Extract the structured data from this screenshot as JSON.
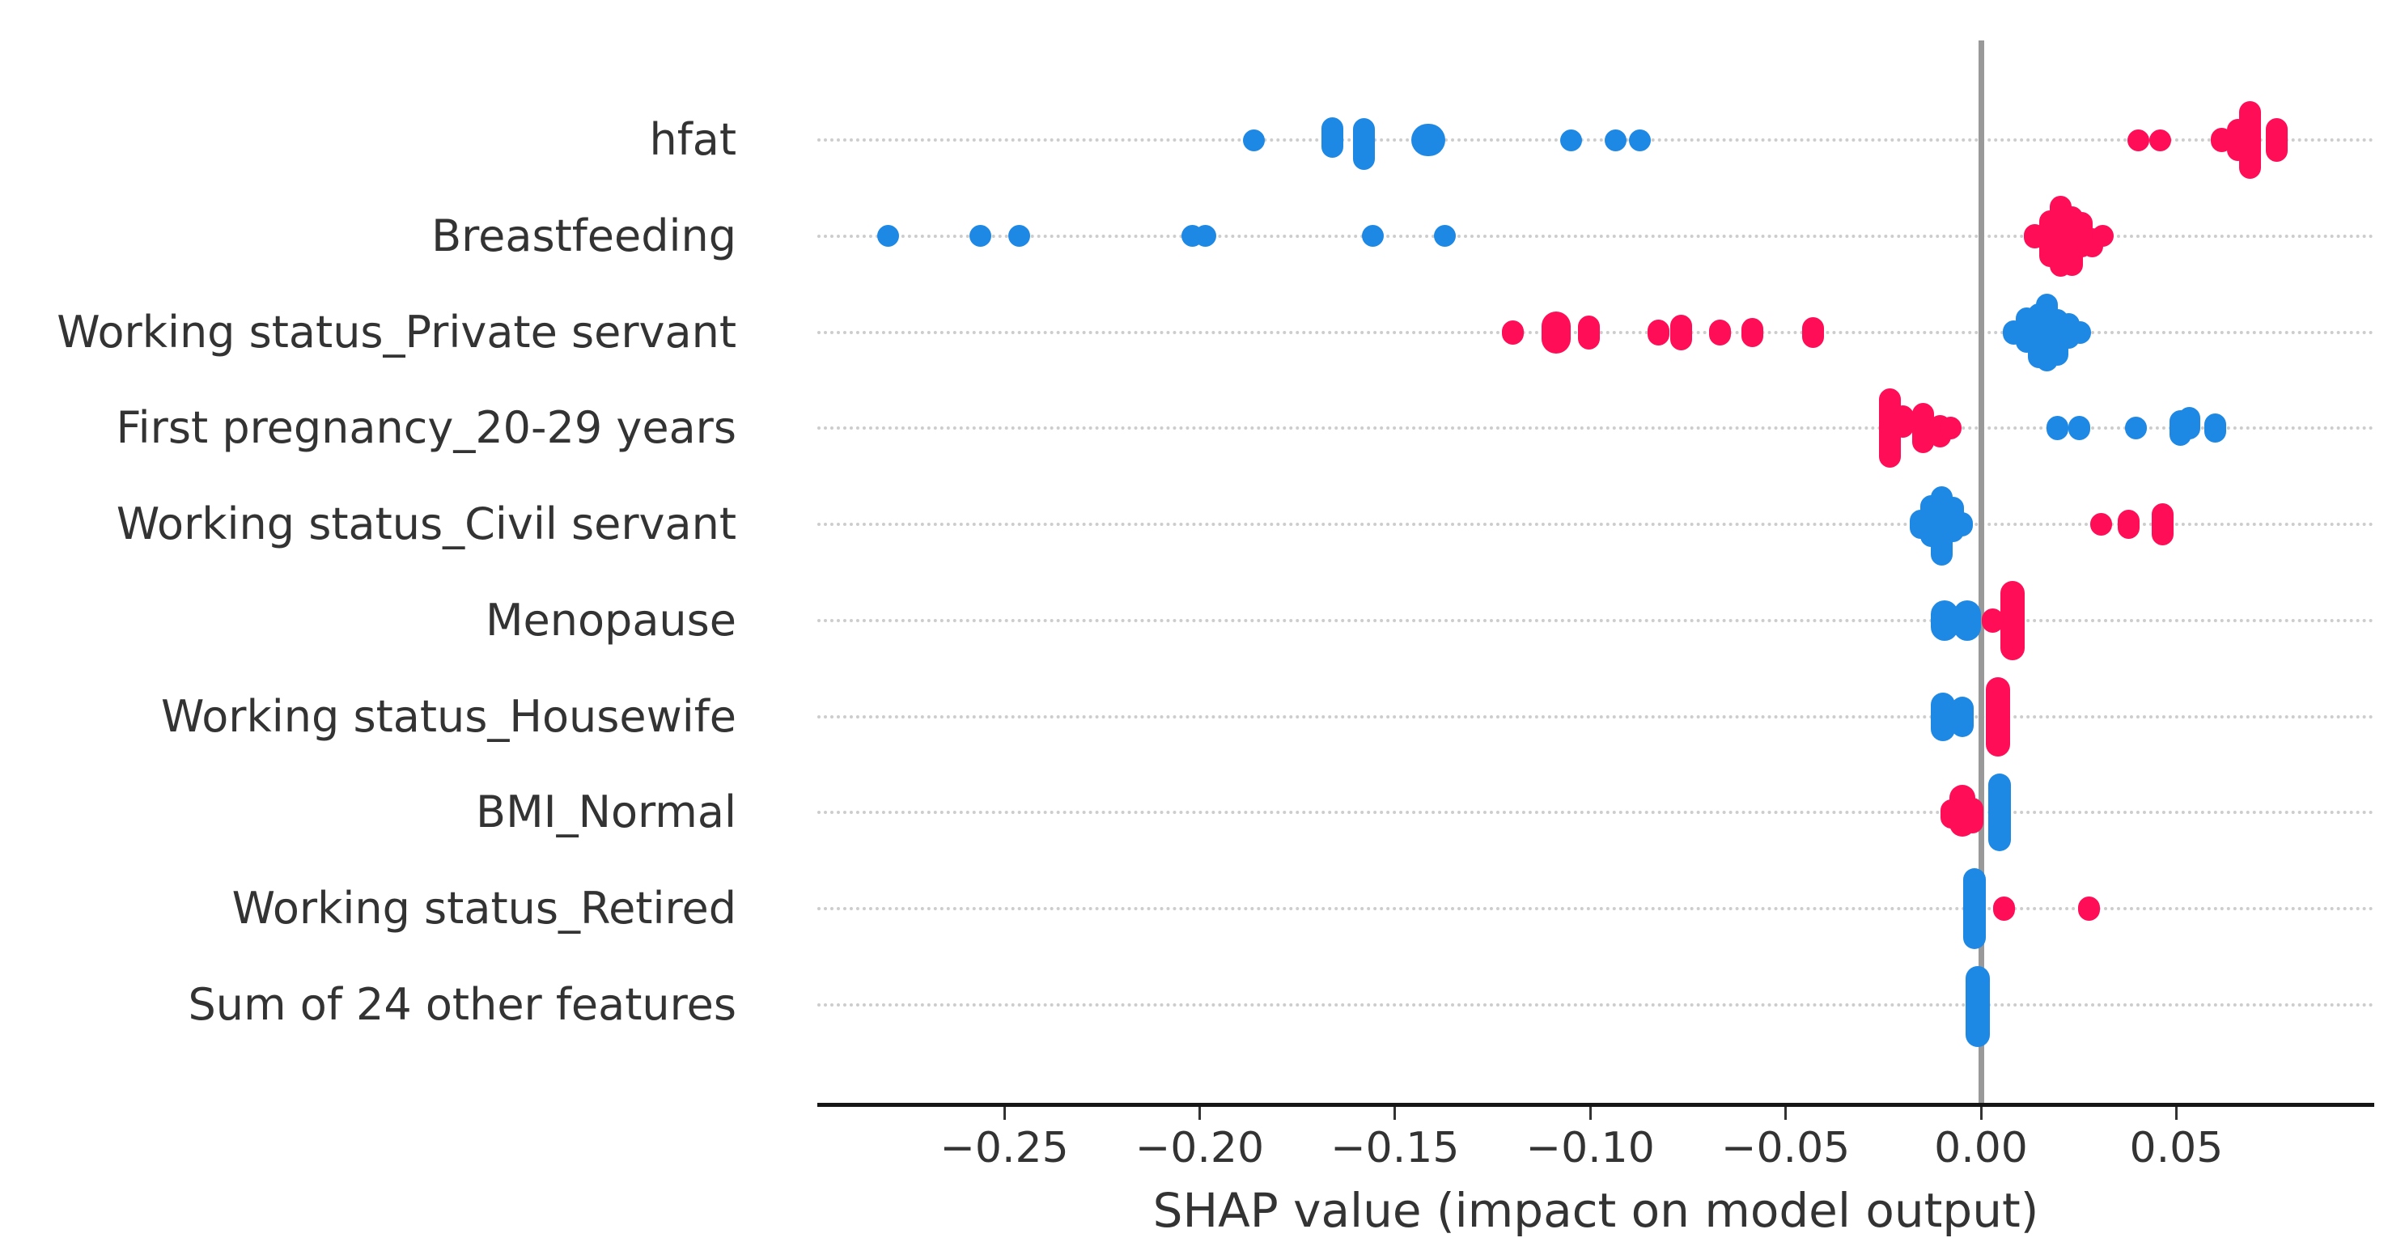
{
  "chart_data": {
    "type": "scatter",
    "subtype": "shap-beeswarm-summary",
    "title": "",
    "xlabel": "SHAP value (impact on model output)",
    "ylabel": "",
    "x_ticks": [
      -0.25,
      -0.2,
      -0.15,
      -0.1,
      -0.05,
      0.0,
      0.05
    ],
    "x_tick_labels": [
      "−0.25",
      "−0.20",
      "−0.15",
      "−0.10",
      "−0.05",
      "0.00",
      "0.05"
    ],
    "xlim": [
      -0.298,
      0.101
    ],
    "grid": "dotted-horizontal-row-guides",
    "legend": "none",
    "colors": {
      "high_feature_value": "#FF0D57",
      "low_feature_value": "#1E88E5",
      "zero_reference_line": "#999999",
      "row_guide": "#CDCDCD",
      "axis_text": "#333333",
      "axis_spine": "#161616"
    },
    "features": [
      {
        "label": "hfat",
        "blue": [
          {
            "v": -0.186,
            "h": 27
          },
          {
            "v": -0.166,
            "h": 50,
            "dy": -3
          },
          {
            "v": -0.158,
            "h": 64,
            "dy": 5
          },
          {
            "v": -0.1415,
            "h": 40,
            "w": 42
          },
          {
            "v": -0.105,
            "h": 27
          },
          {
            "v": -0.0936,
            "h": 27
          },
          {
            "v": -0.0872,
            "h": 27
          }
        ],
        "red": [
          {
            "v": 0.0402,
            "h": 27
          },
          {
            "v": 0.0458,
            "h": 27
          },
          {
            "v": 0.0617,
            "h": 30
          },
          {
            "v": 0.0658,
            "h": 52
          },
          {
            "v": 0.0688,
            "h": 96
          },
          {
            "v": 0.0758,
            "h": 54
          }
        ]
      },
      {
        "label": "Breastfeeding",
        "blue": [
          {
            "v": -0.2797,
            "h": 27
          },
          {
            "v": -0.2562,
            "h": 27
          },
          {
            "v": -0.2462,
            "h": 27
          },
          {
            "v": -0.2019,
            "h": 27
          },
          {
            "v": -0.1986,
            "h": 27
          },
          {
            "v": -0.1557,
            "h": 27
          },
          {
            "v": -0.1373,
            "h": 27
          }
        ],
        "red": [
          {
            "v": 0.0137,
            "h": 30
          },
          {
            "v": 0.0178,
            "h": 70,
            "dy": 3
          },
          {
            "v": 0.0205,
            "h": 100
          },
          {
            "v": 0.0232,
            "h": 86,
            "dy": 6
          },
          {
            "v": 0.0258,
            "h": 56,
            "dy": -2
          },
          {
            "v": 0.0285,
            "h": 36,
            "dy": 8
          },
          {
            "v": 0.0312,
            "h": 27
          }
        ]
      },
      {
        "label": "Working status_Private servant",
        "blue": [
          {
            "v": 0.0083,
            "h": 30
          },
          {
            "v": 0.0118,
            "h": 56,
            "dy": -3
          },
          {
            "v": 0.0148,
            "h": 80,
            "dy": 4
          },
          {
            "v": 0.0168,
            "h": 96
          },
          {
            "v": 0.0196,
            "h": 70,
            "dy": 6
          },
          {
            "v": 0.0225,
            "h": 44,
            "dy": -2
          },
          {
            "v": 0.0253,
            "h": 28
          }
        ],
        "red": [
          {
            "v": -0.1199,
            "h": 30
          },
          {
            "v": -0.1087,
            "h": 52,
            "w": 36
          },
          {
            "v": -0.1004,
            "h": 42
          },
          {
            "v": -0.0826,
            "h": 32
          },
          {
            "v": -0.0768,
            "h": 44
          },
          {
            "v": -0.0669,
            "h": 32
          },
          {
            "v": -0.0586,
            "h": 36
          },
          {
            "v": -0.0429,
            "h": 38
          }
        ]
      },
      {
        "label": "First pregnancy_20-29 years",
        "blue": [
          {
            "v": 0.0195,
            "h": 30
          },
          {
            "v": 0.0251,
            "h": 30
          },
          {
            "v": 0.0396,
            "h": 28
          },
          {
            "v": 0.051,
            "h": 44
          },
          {
            "v": 0.0534,
            "h": 40,
            "dy": -6
          },
          {
            "v": 0.0599,
            "h": 36
          }
        ],
        "red": [
          {
            "v": -0.0232,
            "h": 98
          },
          {
            "v": -0.02,
            "h": 40,
            "dy": -8
          },
          {
            "v": -0.0149,
            "h": 62
          },
          {
            "v": -0.0104,
            "h": 40,
            "dy": 4
          },
          {
            "v": -0.0077,
            "h": 28
          }
        ]
      },
      {
        "label": "Working status_Civil servant",
        "blue": [
          {
            "v": -0.0155,
            "h": 36
          },
          {
            "v": -0.0128,
            "h": 64,
            "dy": -4
          },
          {
            "v": -0.01,
            "h": 98,
            "dy": 2
          },
          {
            "v": -0.0072,
            "h": 56,
            "dy": -6
          },
          {
            "v": -0.0048,
            "h": 30
          }
        ],
        "red": [
          {
            "v": 0.0307,
            "h": 28
          },
          {
            "v": 0.0377,
            "h": 36
          },
          {
            "v": 0.0466,
            "h": 52
          }
        ]
      },
      {
        "label": "Menopause",
        "blue": [
          {
            "v": -0.0093,
            "h": 50,
            "w": 34
          },
          {
            "v": -0.0035,
            "h": 50,
            "w": 34
          }
        ],
        "red": [
          {
            "v": 0.0031,
            "h": 30
          },
          {
            "v": 0.0081,
            "h": 98,
            "w": 30
          }
        ]
      },
      {
        "label": "Working status_Housewife",
        "blue": [
          {
            "v": -0.0097,
            "h": 60,
            "w": 30
          },
          {
            "v": -0.0048,
            "h": 50,
            "w": 28
          }
        ],
        "red": [
          {
            "v": 0.0043,
            "h": 98,
            "w": 30
          }
        ]
      },
      {
        "label": "BMI_Normal",
        "blue": [
          {
            "v": 0.0048,
            "h": 96,
            "w": 28
          }
        ],
        "red": [
          {
            "v": -0.0075,
            "h": 36,
            "dy": 2
          },
          {
            "v": -0.0048,
            "h": 64,
            "dy": -2,
            "w": 32
          },
          {
            "v": -0.0022,
            "h": 44,
            "dy": 4
          }
        ]
      },
      {
        "label": "Working status_Retired",
        "blue": [
          {
            "v": -0.0017,
            "h": 100,
            "w": 28
          }
        ],
        "red": [
          {
            "v": 0.006,
            "h": 30
          },
          {
            "v": 0.0276,
            "h": 30
          }
        ]
      },
      {
        "label": "Sum of 24 other features",
        "blue": [
          {
            "v": -0.0008,
            "h": 100,
            "dy": 2,
            "w": 30
          }
        ],
        "red": []
      }
    ]
  }
}
